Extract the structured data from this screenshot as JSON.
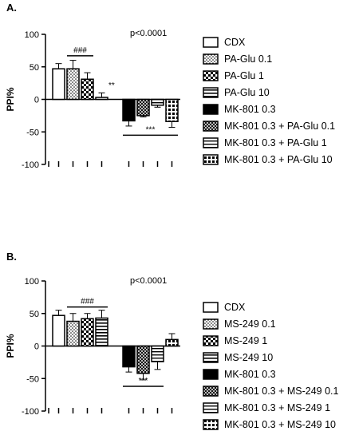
{
  "chart_data": [
    {
      "type": "bar",
      "panel": "A.",
      "annotation": "p<0.0001",
      "ylabel": "PPI%",
      "ylim": [
        -100,
        100
      ],
      "yticks": [
        100,
        50,
        0,
        -50,
        -100
      ],
      "series": [
        {
          "name": "CDX",
          "values": [
            47
          ],
          "error": [
            8
          ],
          "pattern": "white"
        },
        {
          "name": "PA-Glu 0.1",
          "values": [
            47
          ],
          "error": [
            13
          ],
          "pattern": "dots"
        },
        {
          "name": "PA-Glu 1",
          "values": [
            31
          ],
          "error": [
            10
          ],
          "pattern": "checker"
        },
        {
          "name": "PA-Glu 10",
          "values": [
            3
          ],
          "error": [
            7
          ],
          "pattern": "hstripes"
        },
        {
          "name": "MK-801 0.3",
          "values": [
            -33
          ],
          "error": [
            8
          ],
          "pattern": "black"
        },
        {
          "name": "MK-801 0.3 + PA-Glu 0.1",
          "values": [
            -25
          ],
          "error": [
            2
          ],
          "pattern": "diamond"
        },
        {
          "name": "MK-801 0.3 + PA-Glu 1",
          "values": [
            -9
          ],
          "error": [
            3
          ],
          "pattern": "halfbar"
        },
        {
          "name": "MK-801 0.3 + PA-Glu 10",
          "values": [
            -34
          ],
          "error": [
            9
          ],
          "pattern": "grid"
        }
      ],
      "significance": [
        {
          "label": "###",
          "from": 1,
          "to": 2,
          "y": 67
        },
        {
          "label": "**",
          "from": 3,
          "to": 3,
          "y": 18
        },
        {
          "label": "***",
          "from": 4,
          "to": 7,
          "y": -55
        }
      ]
    },
    {
      "type": "bar",
      "panel": "B.",
      "annotation": "p<0.0001",
      "ylabel": "PPI%",
      "ylim": [
        -100,
        100
      ],
      "yticks": [
        100,
        50,
        0,
        -50,
        -100
      ],
      "series": [
        {
          "name": "CDX",
          "values": [
            47
          ],
          "error": [
            8
          ],
          "pattern": "white"
        },
        {
          "name": "MS-249 0.1",
          "values": [
            38
          ],
          "error": [
            12
          ],
          "pattern": "dots"
        },
        {
          "name": "MS-249 1",
          "values": [
            42
          ],
          "error": [
            8
          ],
          "pattern": "checker"
        },
        {
          "name": "MS-249 10",
          "values": [
            43
          ],
          "error": [
            12
          ],
          "pattern": "hstripes"
        },
        {
          "name": "MK-801 0.3",
          "values": [
            -32
          ],
          "error": [
            8
          ],
          "pattern": "black"
        },
        {
          "name": "MK-801 0.3 + MS-249 0.1",
          "values": [
            -42
          ],
          "error": [
            10
          ],
          "pattern": "diamond"
        },
        {
          "name": "MK-801 0.3 + MS-249 1",
          "values": [
            -24
          ],
          "error": [
            12
          ],
          "pattern": "halfbar"
        },
        {
          "name": "MK-801 0.3 + MS-249 10",
          "values": [
            10
          ],
          "error": [
            9
          ],
          "pattern": "grid"
        }
      ],
      "significance": [
        {
          "label": "###",
          "from": 1,
          "to": 3,
          "y": 60
        },
        {
          "label": "***",
          "from": 4,
          "to": 6,
          "y": -62
        }
      ]
    }
  ]
}
